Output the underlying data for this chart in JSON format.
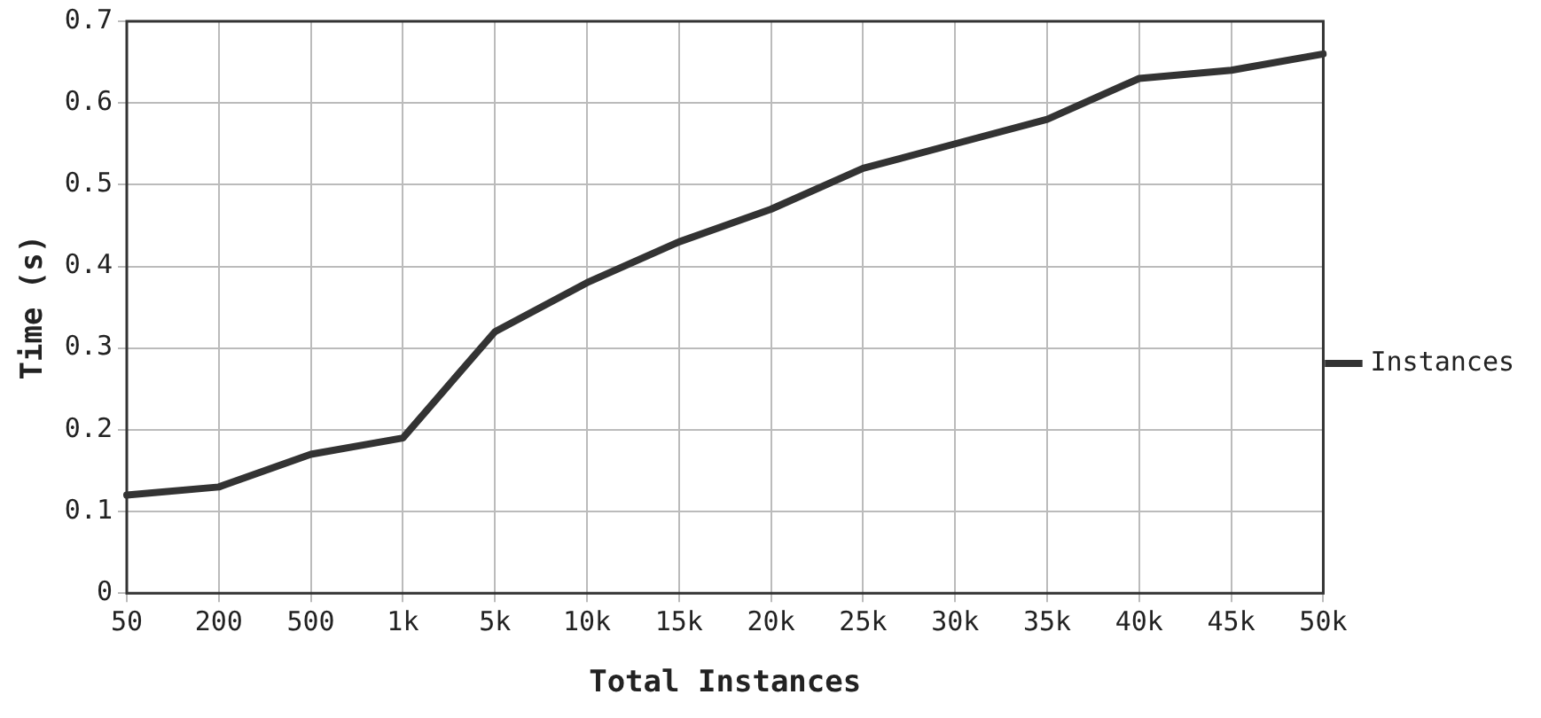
{
  "chart_data": {
    "type": "line",
    "xlabel": "Total Instances",
    "ylabel": "Time (s)",
    "categories": [
      "50",
      "200",
      "500",
      "1k",
      "5k",
      "10k",
      "15k",
      "20k",
      "25k",
      "30k",
      "35k",
      "40k",
      "45k",
      "50k"
    ],
    "series": [
      {
        "name": "Instances",
        "color": "#333333",
        "values": [
          0.12,
          0.13,
          0.17,
          0.19,
          0.32,
          0.38,
          0.43,
          0.47,
          0.52,
          0.55,
          0.58,
          0.63,
          0.64,
          0.66
        ]
      }
    ],
    "ylim": [
      0,
      0.7
    ],
    "yticks": [
      0,
      0.1,
      0.2,
      0.3,
      0.4,
      0.5,
      0.6,
      0.7
    ],
    "grid": true,
    "legend": "right",
    "marker": "none",
    "line_style": "solid"
  }
}
